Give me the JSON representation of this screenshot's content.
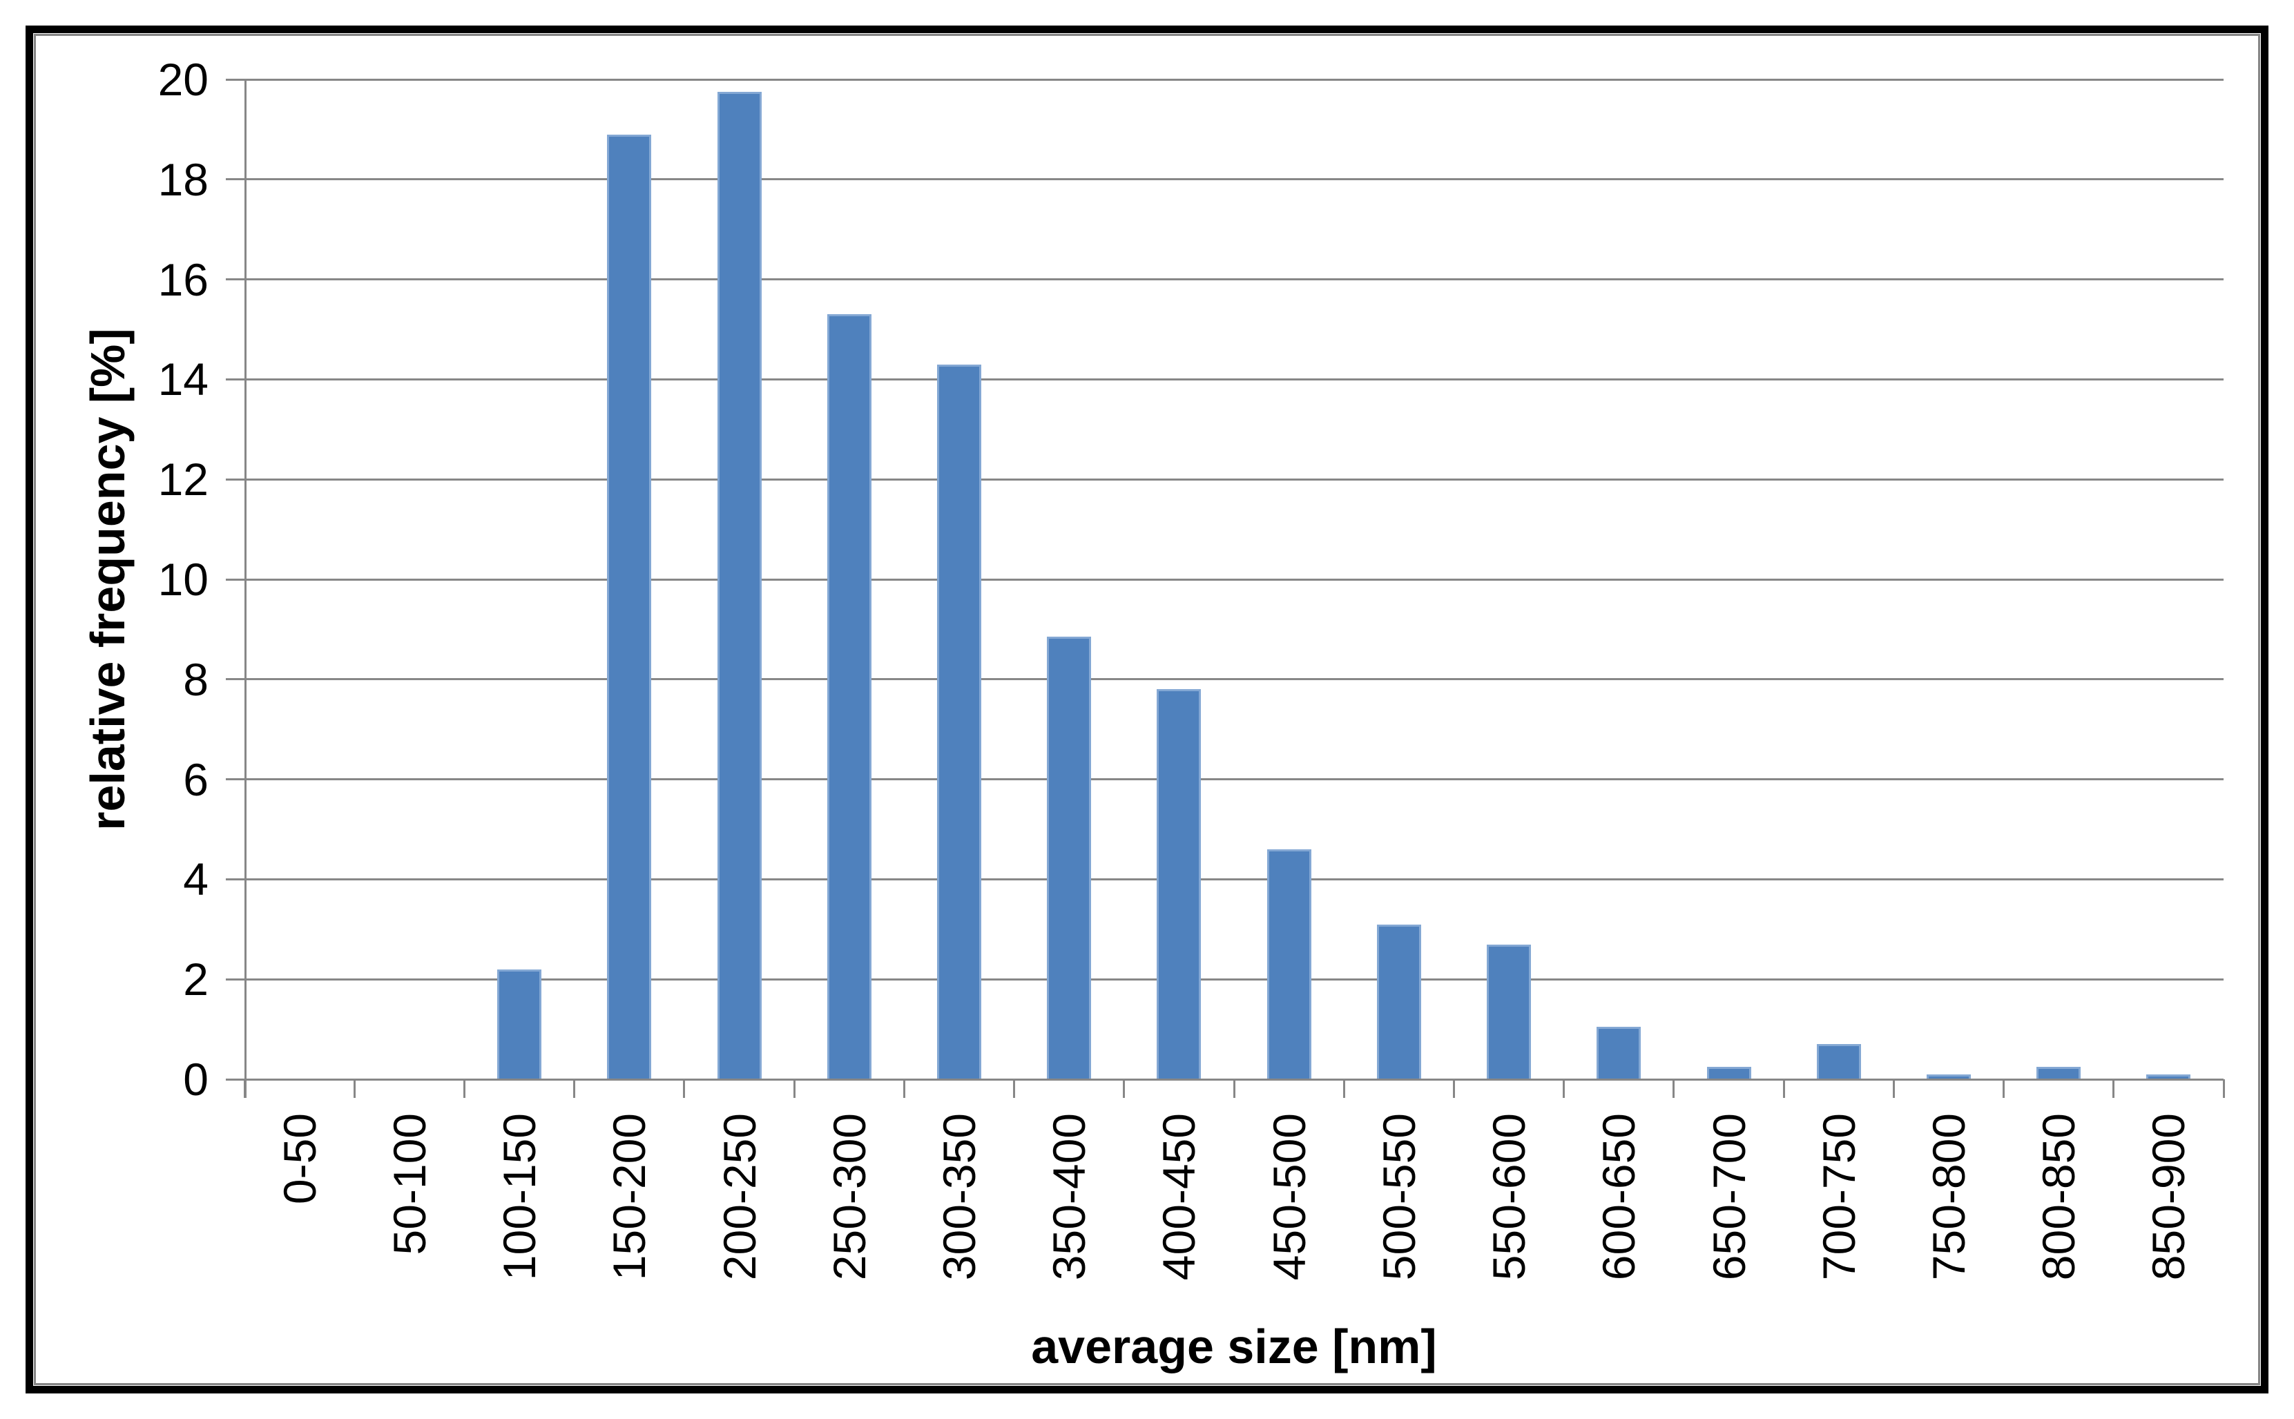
{
  "figure": {
    "background": "#ffffff",
    "frame_color": "#000000",
    "inner_border_color": "#848484"
  },
  "chart_data": {
    "type": "bar",
    "title": "",
    "xlabel": "average size [nm]",
    "ylabel": "relative frequency [%]",
    "categories": [
      "0-50",
      "50-100",
      "100-150",
      "150-200",
      "200-250",
      "250-300",
      "300-350",
      "350-400",
      "400-450",
      "450-500",
      "500-550",
      "550-600",
      "600-650",
      "650-700",
      "700-750",
      "750-800",
      "800-850",
      "850-900"
    ],
    "values": [
      0,
      0,
      2.2,
      18.9,
      19.75,
      15.3,
      14.3,
      8.85,
      7.8,
      4.6,
      3.1,
      2.7,
      1.05,
      0.25,
      0.7,
      0.1,
      0.25,
      0.1
    ],
    "ylim": [
      0,
      20
    ],
    "yticks": [
      0,
      2,
      4,
      6,
      8,
      10,
      12,
      14,
      16,
      18,
      20
    ],
    "grid": true,
    "legend": "none",
    "bar_color": "#4f81bd",
    "bar_border_color": "#84a8d4",
    "axis_color": "#878787",
    "text_color": "#000000"
  }
}
